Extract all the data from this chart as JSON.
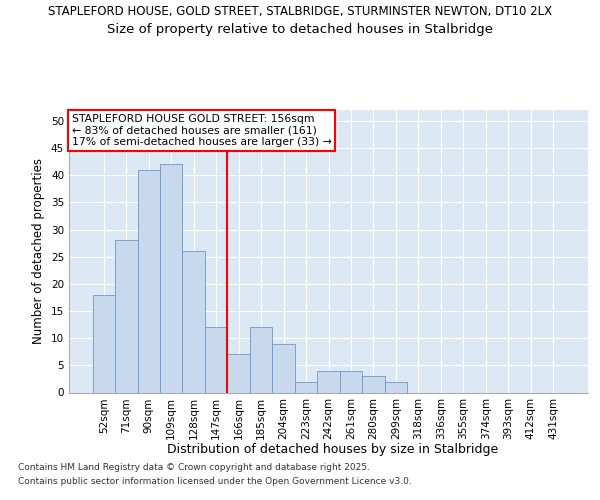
{
  "title_line1": "STAPLEFORD HOUSE, GOLD STREET, STALBRIDGE, STURMINSTER NEWTON, DT10 2LX",
  "title_line2": "Size of property relative to detached houses in Stalbridge",
  "xlabel": "Distribution of detached houses by size in Stalbridge",
  "ylabel": "Number of detached properties",
  "categories": [
    "52sqm",
    "71sqm",
    "90sqm",
    "109sqm",
    "128sqm",
    "147sqm",
    "166sqm",
    "185sqm",
    "204sqm",
    "223sqm",
    "242sqm",
    "261sqm",
    "280sqm",
    "299sqm",
    "318sqm",
    "336sqm",
    "355sqm",
    "374sqm",
    "393sqm",
    "412sqm",
    "431sqm"
  ],
  "values": [
    18,
    28,
    41,
    42,
    26,
    12,
    7,
    12,
    9,
    2,
    4,
    4,
    3,
    2,
    0,
    0,
    0,
    0,
    0,
    0,
    0
  ],
  "bar_color": "#c8d9ee",
  "bar_edge_color": "#6699cc",
  "reference_line_x": 5.5,
  "annotation_line1": "STAPLEFORD HOUSE GOLD STREET: 156sqm",
  "annotation_line2": "← 83% of detached houses are smaller (161)",
  "annotation_line3": "17% of semi-detached houses are larger (33) →",
  "ylim": [
    0,
    52
  ],
  "yticks": [
    0,
    5,
    10,
    15,
    20,
    25,
    30,
    35,
    40,
    45,
    50
  ],
  "background_color": "#dce9f5",
  "grid_color": "#ffffff",
  "footer_line1": "Contains HM Land Registry data © Crown copyright and database right 2025.",
  "footer_line2": "Contains public sector information licensed under the Open Government Licence v3.0.",
  "title_fontsize": 8.5,
  "subtitle_fontsize": 9.5,
  "annotation_fontsize": 7.8,
  "axis_label_fontsize": 9,
  "tick_fontsize": 7.5,
  "ylabel_fontsize": 8.5
}
